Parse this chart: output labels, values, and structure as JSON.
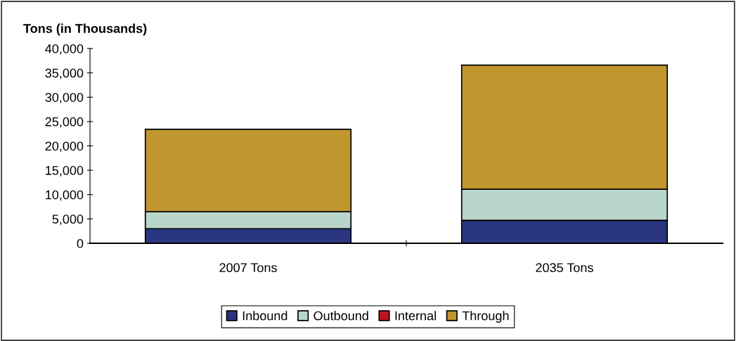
{
  "chart_data": {
    "type": "bar",
    "stacked": true,
    "ylabel": "Tons (in Thousands)",
    "categories": [
      "2007 Tons",
      "2035 Tons"
    ],
    "series": [
      {
        "name": "Inbound",
        "color": "#29357f",
        "values": [
          3000,
          4700
        ]
      },
      {
        "name": "Outbound",
        "color": "#b9d6cb",
        "values": [
          3500,
          6400
        ]
      },
      {
        "name": "Internal",
        "color": "#c0121e",
        "values": [
          0,
          0
        ]
      },
      {
        "name": "Through",
        "color": "#c0962f",
        "values": [
          16900,
          25500
        ]
      }
    ],
    "ylim": [
      0,
      40000
    ],
    "yticks": [
      {
        "value": 0,
        "label": "0"
      },
      {
        "value": 5000,
        "label": "5,000"
      },
      {
        "value": 10000,
        "label": "10,000"
      },
      {
        "value": 15000,
        "label": "15,000"
      },
      {
        "value": 20000,
        "label": "20,000"
      },
      {
        "value": 25000,
        "label": "25,000"
      },
      {
        "value": 30000,
        "label": "30,000"
      },
      {
        "value": 35000,
        "label": "35,000"
      },
      {
        "value": 40000,
        "label": "40,000"
      }
    ],
    "grid": false,
    "legend": "bottom"
  }
}
